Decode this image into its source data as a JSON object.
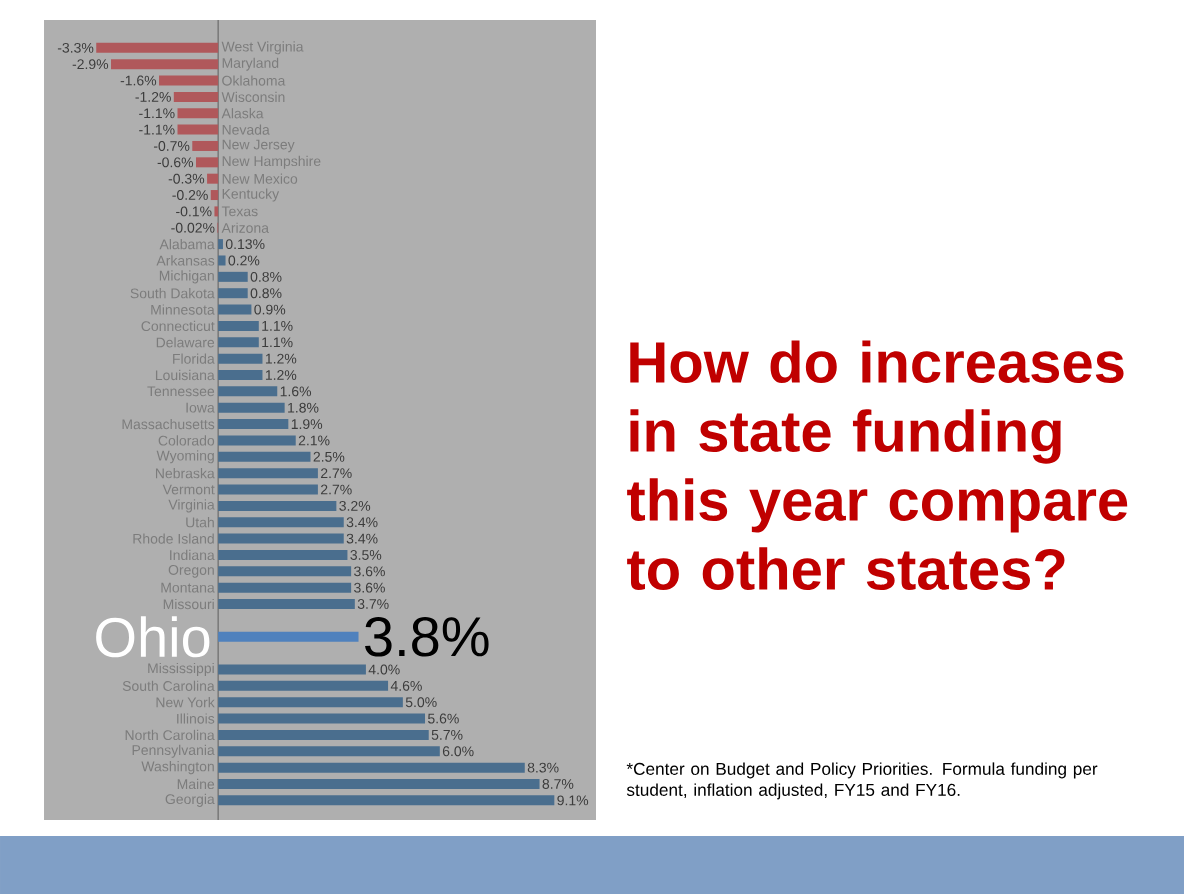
{
  "chart_data": {
    "type": "bar",
    "orientation": "horizontal",
    "title": "How do increases in state funding this year compare to other states?",
    "categories": [
      "West Virginia",
      "Maryland",
      "Oklahoma",
      "Wisconsin",
      "Alaska",
      "Nevada",
      "New Jersey",
      "New Hampshire",
      "New Mexico",
      "Kentucky",
      "Texas",
      "Arizona",
      "Alabama",
      "Arkansas",
      "Michigan",
      "South Dakota",
      "Minnesota",
      "Connecticut",
      "Delaware",
      "Florida",
      "Louisiana",
      "Tennessee",
      "Iowa",
      "Massachusetts",
      "Colorado",
      "Wyoming",
      "Nebraska",
      "Vermont",
      "Virginia",
      "Utah",
      "Rhode Island",
      "Indiana",
      "Oregon",
      "Montana",
      "Missouri",
      null,
      "Ohio",
      null,
      "Mississippi",
      "South Carolina",
      "New York",
      "Illinois",
      "North Carolina",
      "Pennsylvania",
      "Washington",
      "Maine",
      "Georgia"
    ],
    "values": [
      -3.3,
      -2.9,
      -1.6,
      -1.2,
      -1.1,
      -1.1,
      -0.7,
      -0.6,
      -0.3,
      -0.2,
      -0.1,
      -0.02,
      0.13,
      0.2,
      0.8,
      0.8,
      0.9,
      1.1,
      1.1,
      1.2,
      1.2,
      1.6,
      1.8,
      1.9,
      2.1,
      2.5,
      2.7,
      2.7,
      3.2,
      3.4,
      3.4,
      3.5,
      3.6,
      3.6,
      3.7,
      null,
      3.8,
      null,
      4.0,
      4.6,
      5.0,
      5.6,
      5.7,
      6.0,
      8.3,
      8.7,
      9.1
    ],
    "value_labels": [
      "-3.3%",
      "-2.9%",
      "-1.6%",
      "-1.2%",
      "-1.1%",
      "-1.1%",
      "-0.7%",
      "-0.6%",
      "-0.3%",
      "-0.2%",
      "-0.1%",
      "-0.02%",
      "0.13%",
      "0.2%",
      "0.8%",
      "0.8%",
      "0.9%",
      "1.1%",
      "1.1%",
      "1.2%",
      "1.2%",
      "1.6%",
      "1.8%",
      "1.9%",
      "2.1%",
      "2.5%",
      "2.7%",
      "2.7%",
      "3.2%",
      "3.4%",
      "3.4%",
      "3.5%",
      "3.6%",
      "3.6%",
      "3.7%",
      null,
      null,
      null,
      "4.0%",
      "4.6%",
      "5.0%",
      "5.6%",
      "5.7%",
      "6.0%",
      "8.3%",
      "8.7%",
      "9.1%"
    ],
    "colors": [
      "#b0585b",
      "#b0585b",
      "#b0585b",
      "#b0585b",
      "#b0585b",
      "#b0585b",
      "#b0585b",
      "#b0585b",
      "#b0585b",
      "#b0585b",
      "#b0585b",
      "#b0585b",
      "#4a6e8e",
      "#4a6e8e",
      "#4a6e8e",
      "#4a6e8e",
      "#4a6e8e",
      "#4a6e8e",
      "#4a6e8e",
      "#4a6e8e",
      "#4a6e8e",
      "#4a6e8e",
      "#4a6e8e",
      "#4a6e8e",
      "#4a6e8e",
      "#4a6e8e",
      "#4a6e8e",
      "#4a6e8e",
      "#4a6e8e",
      "#4a6e8e",
      "#4a6e8e",
      "#4a6e8e",
      "#4a6e8e",
      "#4a6e8e",
      "#4a6e8e",
      "#4a6e8e",
      "#4f81bd",
      "#4a6e8e",
      "#4a6e8e",
      "#4a6e8e",
      "#4a6e8e",
      "#4a6e8e",
      "#4a6e8e",
      "#4a6e8e",
      "#4a6e8e",
      "#4a6e8e",
      "#4a6e8e"
    ],
    "tick_labels": "y",
    "annotations": [
      "*Center on Budget and Policy Priorities. Formula funding per student, inflation adjusted, FY15 and FY16.",
      {
        "text": "3.8%",
        "x": 3.8,
        "y": "Ohio"
      }
    ]
  }
}
